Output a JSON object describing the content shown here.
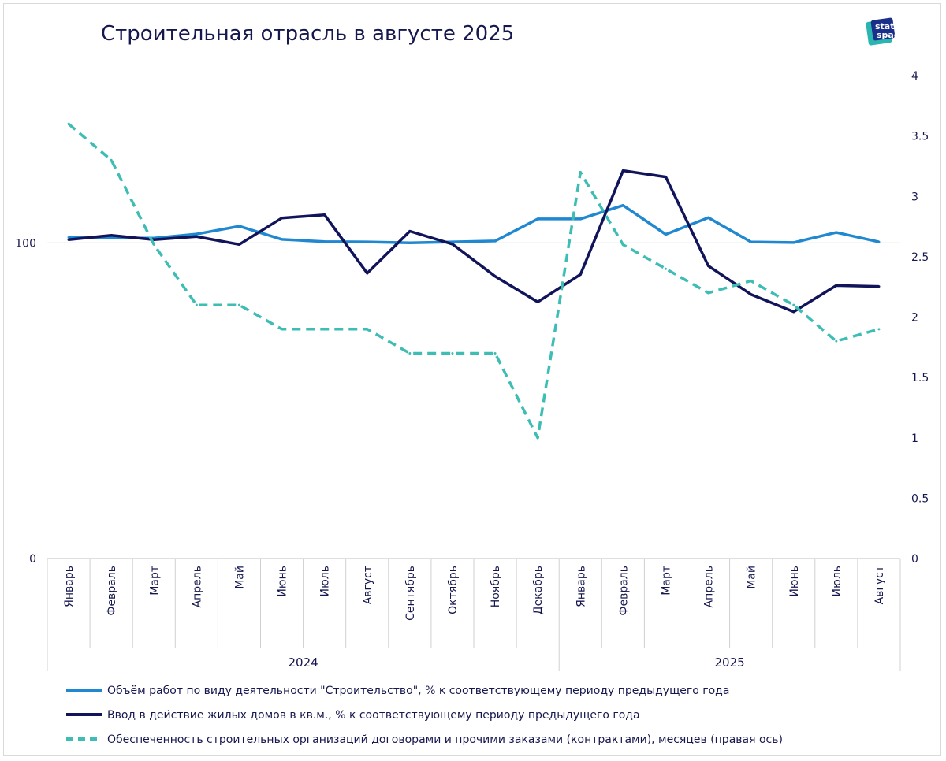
{
  "header": {
    "title": "Строительная отрасль в августе 2025",
    "logo_line1": "stat",
    "logo_line2": "space"
  },
  "colors": {
    "construction_volume": "#2088d0",
    "housing_input": "#11145a",
    "contracts_provision": "#3dbdb4",
    "text": "#16174f",
    "axis": "#bfbfbf"
  },
  "chart_data": {
    "type": "line",
    "title": "Строительная отрасль в августе 2025",
    "categories": [
      "Январь",
      "Февраль",
      "Март",
      "Апрель",
      "Май",
      "Июнь",
      "Июль",
      "Август",
      "Сентябрь",
      "Октябрь",
      "Ноябрь",
      "Декабрь",
      "Январь",
      "Февраль",
      "Март",
      "Апрель",
      "Май",
      "Июнь",
      "Июль",
      "Август"
    ],
    "year_groups": [
      {
        "label": "2024",
        "count": 12
      },
      {
        "label": "2025",
        "count": 8
      }
    ],
    "left_axis": {
      "ticks": [
        "0",
        "100"
      ],
      "ylim": [
        0,
        153
      ]
    },
    "right_axis": {
      "ticks": [
        "0",
        "0.5",
        "1",
        "1.5",
        "2",
        "2.5",
        "3",
        "3.5",
        "4"
      ],
      "ylim": [
        0,
        4
      ]
    },
    "reference_line": 100,
    "series": [
      {
        "name": "Объём работ по виду деятельности \"Строительство\", % к соответствующему периоду предыдущего года",
        "axis": "left",
        "style": "solid",
        "values": [
          101.7,
          101.5,
          101.5,
          102.8,
          105.3,
          101.1,
          100.4,
          100.3,
          100.0,
          100.3,
          100.6,
          107.6,
          107.6,
          111.9,
          102.7,
          108.0,
          100.3,
          100.1,
          103.3,
          100.3
        ]
      },
      {
        "name": "Ввод в действие жилых домов в кв.м., % к соответствующему периоду предыдущего года",
        "axis": "left",
        "style": "solid",
        "values": [
          101.0,
          102.4,
          101.0,
          102.0,
          99.5,
          107.9,
          108.9,
          90.4,
          103.7,
          99.6,
          89.4,
          81.3,
          90.0,
          122.9,
          120.9,
          92.7,
          83.7,
          78.2,
          86.5,
          86.2
        ]
      },
      {
        "name": "Обеспеченность строительных  организаций договорами и прочими заказами (контрактами), месяцев (правая ось)",
        "axis": "right",
        "style": "dashed",
        "values": [
          3.6,
          3.3,
          2.6,
          2.1,
          2.1,
          1.9,
          1.9,
          1.9,
          1.7,
          1.7,
          1.7,
          1.0,
          3.2,
          2.6,
          2.4,
          2.2,
          2.3,
          2.1,
          1.8,
          1.9
        ]
      }
    ]
  }
}
